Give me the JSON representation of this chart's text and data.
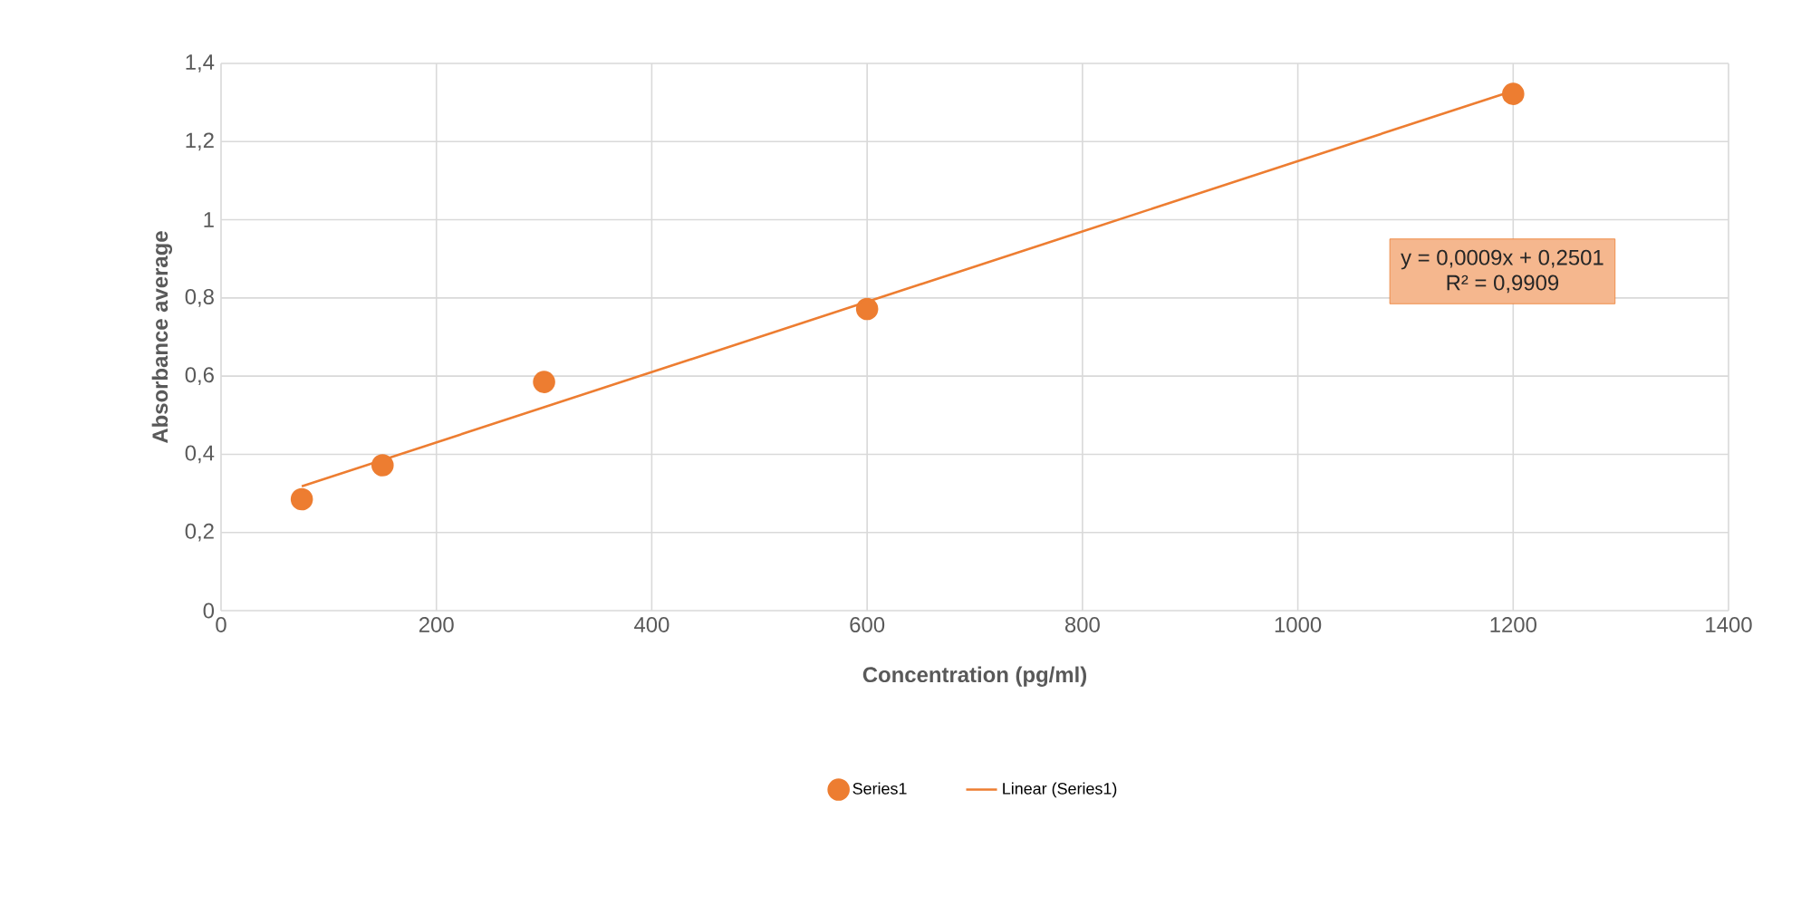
{
  "chart_data": {
    "type": "scatter",
    "xlabel": "Concentration (pg/ml)",
    "ylabel": "Absorbance average",
    "xlim": [
      0,
      1400
    ],
    "xticks": [
      0,
      200,
      400,
      600,
      800,
      1000,
      1200,
      1400
    ],
    "ylim": [
      0,
      1.4
    ],
    "yticks": [
      0,
      {
        "value": 0.2,
        "label": "0,2"
      },
      {
        "value": 0.4,
        "label": "0,4"
      },
      {
        "value": 0.6,
        "label": "0,6"
      },
      {
        "value": 0.8,
        "label": "0,8"
      },
      1,
      {
        "value": 1.2,
        "label": "1,2"
      },
      {
        "value": 1.4,
        "label": "1,4"
      }
    ],
    "series": [
      {
        "name": "Series1",
        "color": "#ed7d31",
        "marker": "circle",
        "x": [
          75,
          150,
          300,
          600,
          1200
        ],
        "values": [
          0.285,
          0.372,
          0.585,
          0.772,
          1.322
        ]
      },
      {
        "name": "Linear (Series1)",
        "type": "line",
        "color": "#ed7d31",
        "line_style": "solid",
        "x": [
          75,
          1200
        ],
        "values": [
          0.318,
          1.33
        ]
      }
    ],
    "annotations": [
      "y = 0,0009x + 0,2501",
      "R² = 0,9909"
    ],
    "grid": true,
    "legend": "bottom"
  }
}
